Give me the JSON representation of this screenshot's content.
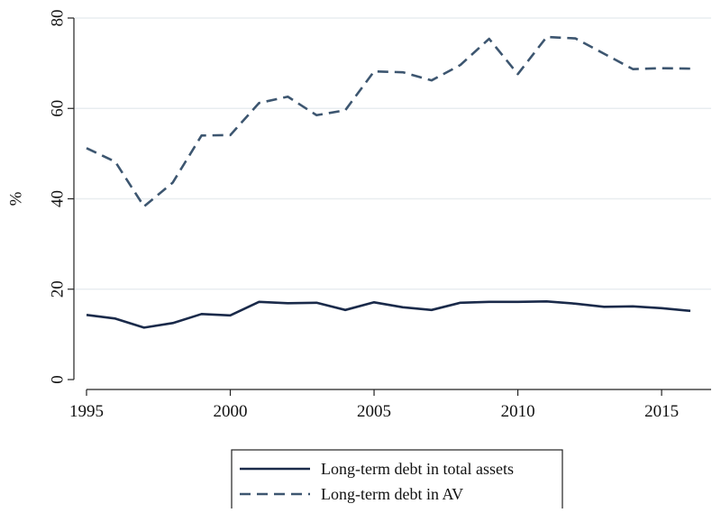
{
  "chart_data": {
    "type": "line",
    "title": "",
    "xlabel": "",
    "ylabel": "%",
    "x": [
      1995,
      1996,
      1997,
      1998,
      1999,
      2000,
      2001,
      2002,
      2003,
      2004,
      2005,
      2006,
      2007,
      2008,
      2009,
      2010,
      2011,
      2012,
      2013,
      2014,
      2015,
      2016
    ],
    "series": [
      {
        "name": "Long-term debt in total assets",
        "style": "solid",
        "color": "#1a2a4a",
        "values": [
          14.3,
          13.5,
          11.5,
          12.5,
          14.5,
          14.2,
          17.2,
          16.9,
          17.0,
          15.4,
          17.1,
          16.0,
          15.4,
          17.0,
          17.2,
          17.2,
          17.3,
          16.8,
          16.1,
          16.2,
          15.8,
          15.2
        ]
      },
      {
        "name": "Long-term debt in AV",
        "style": "dashed",
        "color": "#3d5670",
        "values": [
          51.2,
          48.2,
          38.3,
          43.6,
          54.0,
          54.1,
          61.2,
          62.6,
          58.5,
          59.6,
          68.2,
          68.0,
          66.2,
          69.6,
          75.4,
          67.6,
          75.8,
          75.5,
          72.1,
          68.7,
          68.9,
          68.8
        ]
      }
    ],
    "xlim": [
      1995,
      2016
    ],
    "ylim": [
      0,
      80
    ],
    "xticks": [
      1995,
      2000,
      2005,
      2010,
      2015
    ],
    "yticks": [
      0,
      20,
      40,
      60,
      80
    ],
    "grid": "horizontal",
    "legend_position": "bottom"
  }
}
